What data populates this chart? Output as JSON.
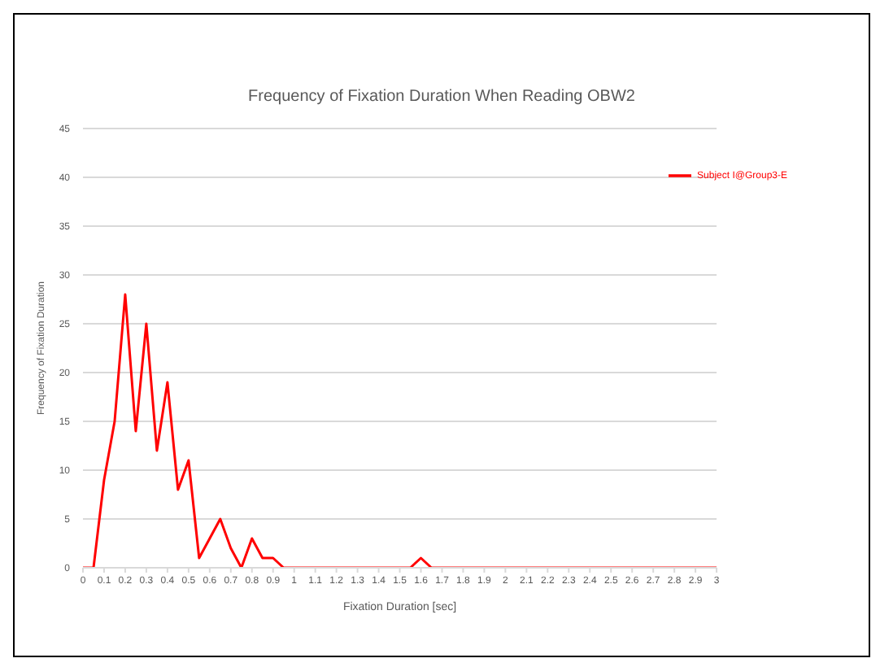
{
  "chart_data": {
    "type": "line",
    "title": "Frequency of Fixation Duration When Reading OBW2",
    "xlabel": "Fixation Duration  [sec]",
    "ylabel": "Frequency of Fixation Duration",
    "x": [
      0,
      0.05,
      0.1,
      0.15,
      0.2,
      0.25,
      0.3,
      0.35,
      0.4,
      0.45,
      0.5,
      0.55,
      0.6,
      0.65,
      0.7,
      0.75,
      0.8,
      0.85,
      0.9,
      0.95,
      1,
      1.05,
      1.1,
      1.15,
      1.2,
      1.25,
      1.3,
      1.35,
      1.4,
      1.45,
      1.5,
      1.55,
      1.6,
      1.65,
      1.7,
      1.75,
      1.8,
      1.85,
      1.9,
      1.95,
      2,
      2.05,
      2.1,
      2.15,
      2.2,
      2.25,
      2.3,
      2.35,
      2.4,
      2.45,
      2.5,
      2.55,
      2.6,
      2.65,
      2.7,
      2.75,
      2.8,
      2.85,
      2.9,
      2.95,
      3
    ],
    "series": [
      {
        "name": "Subject I@Group3-E",
        "color": "#ff0000",
        "values": [
          0,
          0,
          9,
          15,
          28,
          14,
          25,
          12,
          19,
          8,
          11,
          1,
          3,
          5,
          2,
          0,
          3,
          1,
          1,
          0,
          0,
          0,
          0,
          0,
          0,
          0,
          0,
          0,
          0,
          0,
          0,
          0,
          1,
          0,
          0,
          0,
          0,
          0,
          0,
          0,
          0,
          0,
          0,
          0,
          0,
          0,
          0,
          0,
          0,
          0,
          0,
          0,
          0,
          0,
          0,
          0,
          0,
          0,
          0,
          0,
          0
        ]
      }
    ],
    "xlim": [
      0,
      3
    ],
    "xticks": [
      0,
      0.1,
      0.2,
      0.3,
      0.4,
      0.5,
      0.6,
      0.7,
      0.8,
      0.9,
      1,
      1.1,
      1.2,
      1.3,
      1.4,
      1.5,
      1.6,
      1.7,
      1.8,
      1.9,
      2,
      2.1,
      2.2,
      2.3,
      2.4,
      2.5,
      2.6,
      2.7,
      2.8,
      2.9,
      3
    ],
    "ylim": [
      0,
      45
    ],
    "yticks": [
      0,
      5,
      10,
      15,
      20,
      25,
      30,
      35,
      40,
      45
    ],
    "grid": "y",
    "legend": "top right",
    "marker": "none",
    "line_style": "solid"
  }
}
